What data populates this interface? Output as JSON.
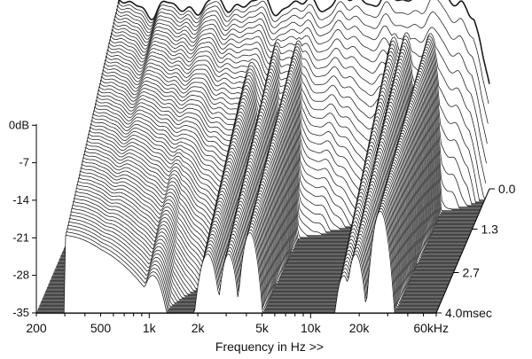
{
  "chart_data": {
    "type": "waterfall",
    "title": "",
    "xlabel": "Frequency in Hz >>",
    "ylabel": "",
    "x_scale": "log",
    "x_range_hz": [
      200,
      60000
    ],
    "x_ticks": [
      {
        "value": 200,
        "label": "200"
      },
      {
        "value": 500,
        "label": "500"
      },
      {
        "value": 1000,
        "label": "1k"
      },
      {
        "value": 2000,
        "label": "2k"
      },
      {
        "value": 5000,
        "label": "5k"
      },
      {
        "value": 10000,
        "label": "10k"
      },
      {
        "value": 20000,
        "label": "20k"
      },
      {
        "value": 60000,
        "label": "60kHz"
      }
    ],
    "y_unit": "dB",
    "y_range_db": [
      -35,
      0
    ],
    "y_ticks": [
      {
        "value": 0,
        "label": "0dB"
      },
      {
        "value": -7,
        "label": "-7"
      },
      {
        "value": -14,
        "label": "-14"
      },
      {
        "value": -21,
        "label": "-21"
      },
      {
        "value": -28,
        "label": "-28"
      },
      {
        "value": -35,
        "label": "-35"
      }
    ],
    "z_unit": "msec",
    "z_range_ms": [
      0,
      4.0
    ],
    "z_ticks": [
      {
        "value": 0.0,
        "label": "0.0"
      },
      {
        "value": 1.3,
        "label": "1.3"
      },
      {
        "value": 2.7,
        "label": "2.7"
      },
      {
        "value": 4.0,
        "label": "4.0msec"
      }
    ],
    "slice_count": 70,
    "response_at_0ms_db": [
      {
        "hz": 300,
        "db": -0.5
      },
      {
        "hz": 500,
        "db": -1.5
      },
      {
        "hz": 1000,
        "db": -1.0
      },
      {
        "hz": 2000,
        "db": -0.3
      },
      {
        "hz": 3000,
        "db": -1.0
      },
      {
        "hz": 5000,
        "db": -0.5
      },
      {
        "hz": 10000,
        "db": 0.5
      },
      {
        "hz": 15000,
        "db": 0.0
      },
      {
        "hz": 20000,
        "db": 1.0
      },
      {
        "hz": 30000,
        "db": 2.0
      },
      {
        "hz": 40000,
        "db": 0.0
      },
      {
        "hz": 55000,
        "db": -6.0
      }
    ]
  }
}
